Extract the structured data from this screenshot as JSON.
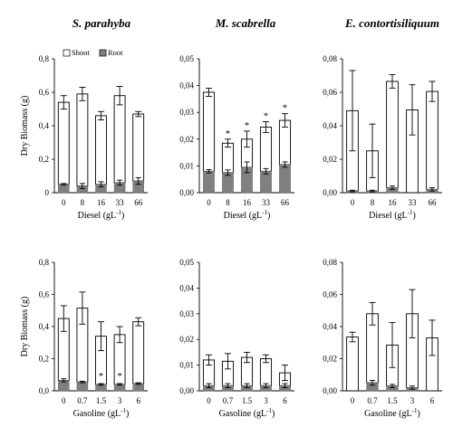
{
  "chart_data": [
    {
      "type": "bar",
      "stacked": true,
      "title": "S. parahyba",
      "categories": [
        "0",
        "8",
        "16",
        "33",
        "66"
      ],
      "xlabel": "Diesel (gL-1)",
      "ylabel": "Dry Biomass (g)",
      "ylim": [
        0,
        0.8
      ],
      "yticks": [
        "0",
        "0,2",
        "0,4",
        "0,6",
        "0,8"
      ],
      "legend": {
        "placement": "top",
        "entries": [
          "Shoot",
          "Root"
        ]
      },
      "series": [
        {
          "name": "Root",
          "values": [
            0.05,
            0.04,
            0.05,
            0.06,
            0.07
          ],
          "err": [
            0.005,
            0.015,
            0.015,
            0.015,
            0.02
          ]
        },
        {
          "name": "Shoot",
          "values": [
            0.49,
            0.55,
            0.41,
            0.52,
            0.4
          ],
          "err": [
            0.04,
            0.04,
            0.025,
            0.055,
            0.015
          ]
        }
      ],
      "asterisks": []
    },
    {
      "type": "bar",
      "stacked": true,
      "title": "M. scabrella",
      "categories": [
        "0",
        "8",
        "16",
        "33",
        "66"
      ],
      "xlabel": "Diesel (gL-1)",
      "ylabel": "",
      "ylim": [
        0,
        0.05
      ],
      "yticks": [
        "0,00",
        "0,01",
        "0,02",
        "0,03",
        "0,04",
        "0,05"
      ],
      "series": [
        {
          "name": "Root",
          "values": [
            0.008,
            0.0075,
            0.0095,
            0.008,
            0.0105
          ],
          "err": [
            0.0006,
            0.001,
            0.002,
            0.001,
            0.001
          ]
        },
        {
          "name": "Shoot",
          "values": [
            0.0295,
            0.011,
            0.0105,
            0.0165,
            0.0165
          ],
          "err": [
            0.0015,
            0.0015,
            0.003,
            0.002,
            0.0025
          ]
        }
      ],
      "asterisks": [
        1,
        2,
        3,
        4
      ]
    },
    {
      "type": "bar",
      "stacked": true,
      "title": "E. contortisiliquum",
      "categories": [
        "0",
        "8",
        "16",
        "33",
        "66"
      ],
      "xlabel": "Diesel (gL-1)",
      "ylabel": "",
      "ylim": [
        0,
        0.08
      ],
      "yticks": [
        "0,00",
        "0,02",
        "0,04",
        "0,06",
        "0,08"
      ],
      "series": [
        {
          "name": "Root",
          "values": [
            0.001,
            0.001,
            0.003,
            0.0,
            0.002
          ],
          "err": [
            0.0005,
            0.0005,
            0.001,
            0.0,
            0.001
          ]
        },
        {
          "name": "Shoot",
          "values": [
            0.048,
            0.024,
            0.0635,
            0.0495,
            0.0585
          ],
          "err": [
            0.024,
            0.016,
            0.004,
            0.015,
            0.006
          ]
        }
      ],
      "asterisks": []
    },
    {
      "type": "bar",
      "stacked": true,
      "title": "",
      "categories": [
        "0",
        "0.7",
        "1.5",
        "3",
        "6"
      ],
      "xlabel": "Gasoline (gL-1)",
      "ylabel": "Dry Biomass (g)",
      "ylim": [
        0,
        0.8
      ],
      "yticks": [
        "0,0",
        "0,2",
        "0,4",
        "0,6",
        "0,8"
      ],
      "series": [
        {
          "name": "Root",
          "values": [
            0.065,
            0.055,
            0.04,
            0.04,
            0.045
          ],
          "err": [
            0.01,
            0.005,
            0.005,
            0.005,
            0.005
          ]
        },
        {
          "name": "Shoot",
          "values": [
            0.385,
            0.46,
            0.3,
            0.31,
            0.385
          ],
          "err": [
            0.08,
            0.1,
            0.09,
            0.05,
            0.025
          ]
        }
      ],
      "asterisks": [
        2,
        3
      ]
    },
    {
      "type": "bar",
      "stacked": true,
      "title": "",
      "categories": [
        "0",
        "0.7",
        "1.5",
        "3",
        "6"
      ],
      "xlabel": "Gasoline (gL-1)",
      "ylabel": "",
      "ylim": [
        0,
        0.05
      ],
      "yticks": [
        "0,00",
        "0,01",
        "0,02",
        "0,03",
        "0,04",
        "0,05"
      ],
      "series": [
        {
          "name": "Root",
          "values": [
            0.002,
            0.002,
            0.002,
            0.002,
            0.002
          ],
          "err": [
            0.0008,
            0.0008,
            0.0008,
            0.0008,
            0.0008
          ]
        },
        {
          "name": "Shoot",
          "values": [
            0.01,
            0.0095,
            0.011,
            0.0105,
            0.005
          ],
          "err": [
            0.002,
            0.003,
            0.002,
            0.0015,
            0.003
          ]
        }
      ],
      "asterisks": []
    },
    {
      "type": "bar",
      "stacked": true,
      "title": "",
      "categories": [
        "0",
        "0.7",
        "1.5",
        "3",
        "6"
      ],
      "xlabel": "Gasoline (gL-1)",
      "ylabel": "",
      "ylim": [
        0,
        0.08
      ],
      "yticks": [
        "0,00",
        "0,02",
        "0,04",
        "0,06",
        "0,08"
      ],
      "series": [
        {
          "name": "Root",
          "values": [
            0.0,
            0.005,
            0.003,
            0.002,
            0.0
          ],
          "err": [
            0.0,
            0.0015,
            0.001,
            0.001,
            0.0
          ]
        },
        {
          "name": "Shoot",
          "values": [
            0.0335,
            0.043,
            0.0255,
            0.046,
            0.033
          ],
          "err": [
            0.003,
            0.007,
            0.014,
            0.015,
            0.011
          ]
        }
      ],
      "asterisks": []
    }
  ]
}
